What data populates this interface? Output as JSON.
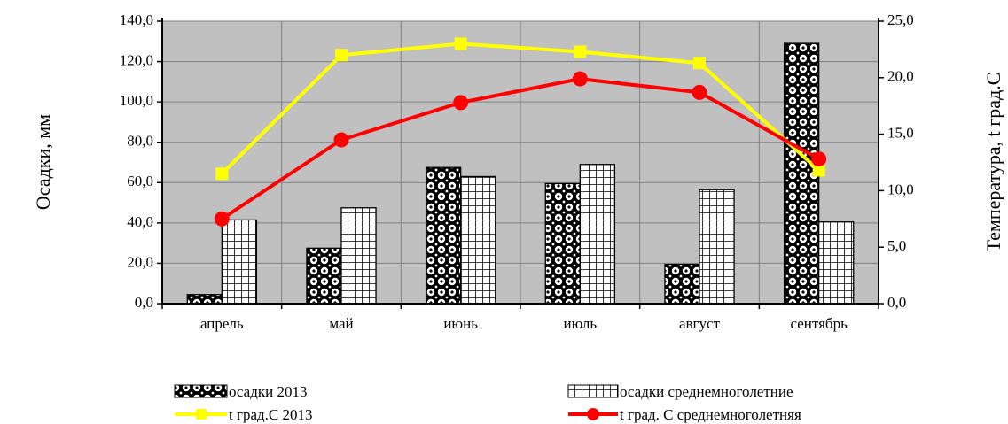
{
  "chart_data": {
    "type": "bar",
    "categories": [
      "апрель",
      "май",
      "июнь",
      "июль",
      "август",
      "сентябрь"
    ],
    "series": [
      {
        "name": "осадки 2013",
        "type": "bar",
        "axis": "left",
        "pattern": "circles",
        "values": [
          4.5,
          27.5,
          67.5,
          59.5,
          19.5,
          129.0
        ]
      },
      {
        "name": "осадки среднемноголетние",
        "type": "bar",
        "axis": "left",
        "pattern": "grid",
        "values": [
          41.5,
          47.5,
          63.0,
          69.0,
          56.5,
          40.5
        ]
      },
      {
        "name": "t град.С 2013",
        "type": "line",
        "axis": "right",
        "color": "#ffff00",
        "marker": "square",
        "values": [
          11.5,
          22.0,
          23.0,
          22.3,
          21.3,
          11.8
        ]
      },
      {
        "name": "t град. С среднемноголетняя",
        "type": "line",
        "axis": "right",
        "color": "#ff0000",
        "marker": "circle",
        "values": [
          7.5,
          14.5,
          17.8,
          19.9,
          18.7,
          12.8
        ]
      }
    ],
    "ylabel": "Осадки, мм",
    "y2label": "Температура, t град.С",
    "ylim": [
      0,
      140
    ],
    "y2lim": [
      0,
      25
    ],
    "yticks": [
      "0,0",
      "20,0",
      "40,0",
      "60,0",
      "80,0",
      "100,0",
      "120,0",
      "140,0"
    ],
    "y2ticks": [
      "0,0",
      "5,0",
      "10,0",
      "15,0",
      "20,0",
      "25,0"
    ],
    "plot_background": "#c0c0c0",
    "grid": true,
    "legend_position": "bottom"
  }
}
